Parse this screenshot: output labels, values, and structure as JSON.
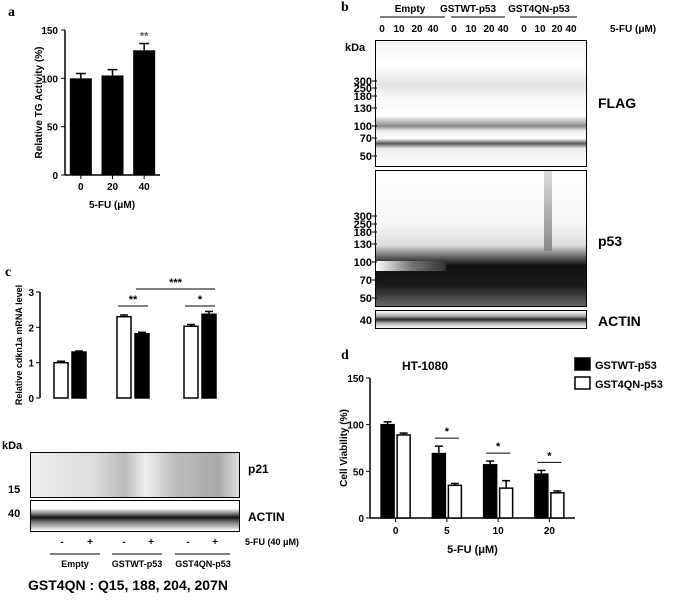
{
  "panels": {
    "a": "a",
    "b": "b",
    "c": "c",
    "d": "d"
  },
  "footer": "GST4QN : Q15, 188, 204, 207N",
  "chart_data": [
    {
      "type": "bar",
      "panel": "a",
      "categories": [
        "0",
        "20",
        "40"
      ],
      "values": [
        100,
        103,
        129
      ],
      "errors": [
        5,
        6,
        7
      ],
      "significance": [
        "",
        "",
        "**"
      ],
      "ylabel": "Relative TG Activity (%)",
      "xlabel": "5-FU (μM)",
      "yticks": [
        0,
        50,
        100,
        150
      ],
      "ylim": [
        0,
        150
      ]
    },
    {
      "type": "bar",
      "panel": "c",
      "ylabel": "Relative cdkn1a mRNA level",
      "yticks": [
        0,
        1,
        2,
        3
      ],
      "ylim": [
        0,
        3
      ],
      "groups": [
        {
          "values": [
            1.0,
            1.3
          ],
          "errors": [
            0.04,
            0.03
          ],
          "fills": [
            "white",
            "black"
          ]
        },
        {
          "values": [
            2.3,
            1.82
          ],
          "errors": [
            0.05,
            0.04
          ],
          "fills": [
            "white",
            "black"
          ]
        },
        {
          "values": [
            2.03,
            2.37
          ],
          "errors": [
            0.05,
            0.08
          ],
          "fills": [
            "white",
            "black"
          ]
        }
      ],
      "significance": [
        {
          "text": "**",
          "from": [
            1,
            0
          ],
          "to": [
            1,
            1
          ]
        },
        {
          "text": "***",
          "from": [
            1,
            1
          ],
          "to": [
            2,
            1
          ]
        },
        {
          "text": "*",
          "from": [
            2,
            0
          ],
          "to": [
            2,
            1
          ]
        }
      ]
    },
    {
      "type": "bar",
      "panel": "d",
      "title": "HT-1080",
      "categories": [
        "0",
        "5",
        "10",
        "20"
      ],
      "series": [
        {
          "name": "GSTWT-p53",
          "values": [
            100,
            69,
            57,
            47
          ],
          "errors": [
            3,
            8,
            4,
            4
          ],
          "color": "#000000"
        },
        {
          "name": "GST4QN-p53",
          "values": [
            89,
            35,
            32,
            27
          ],
          "errors": [
            2,
            2,
            8,
            2
          ],
          "color": "#ffffff"
        }
      ],
      "significance": [
        "",
        "*",
        "*",
        "*"
      ],
      "ylabel": "Cell Viability (%)",
      "xlabel": "5-FU (μM)",
      "yticks": [
        0,
        50,
        100,
        150
      ],
      "ylim": [
        0,
        150
      ],
      "legend": "top-right"
    }
  ],
  "blot_b": {
    "header_groups": [
      "Empty",
      "GSTWT-p53",
      "GST4QN-p53"
    ],
    "lanes": [
      "0",
      "10",
      "20",
      "40",
      "0",
      "10",
      "20",
      "40",
      "0",
      "10",
      "20",
      "40"
    ],
    "treatment": "5-FU (μM)",
    "kda": "kDa",
    "flag_markers": [
      "300",
      "250",
      "180",
      "130",
      "100",
      "70",
      "50"
    ],
    "p53_markers": [
      "300",
      "250",
      "180",
      "130",
      "100",
      "70",
      "50"
    ],
    "actin_markers": [
      "40"
    ],
    "labels": {
      "flag": "FLAG",
      "p53": "p53",
      "actin": "ACTIN"
    }
  },
  "blot_c": {
    "kda": "kDa",
    "markers_p21": [
      "15"
    ],
    "markers_actin": [
      "40"
    ],
    "labels": {
      "p21": "p21",
      "actin": "ACTIN"
    },
    "lanes": [
      "-",
      "+",
      "-",
      "+",
      "-",
      "+"
    ],
    "treatment": "5-FU (40 μM)",
    "groups": [
      "Empty",
      "GSTWT-p53",
      "GST4QN-p53"
    ]
  }
}
